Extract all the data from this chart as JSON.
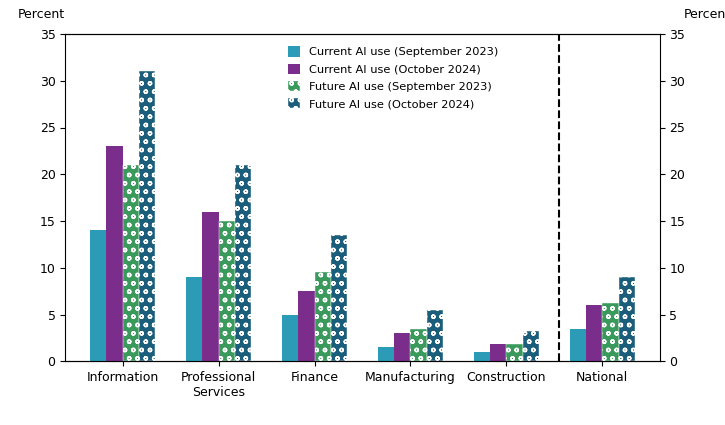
{
  "categories": [
    "Information",
    "Professional\nServices",
    "Finance",
    "Manufacturing",
    "Construction",
    "National"
  ],
  "series": {
    "current_sep2023": [
      14,
      9,
      5,
      1.5,
      1,
      3.5
    ],
    "current_oct2024": [
      23,
      16,
      7.5,
      3,
      1.8,
      6
    ],
    "future_sep2023": [
      21,
      15,
      9.5,
      3.5,
      1.8,
      6.2
    ],
    "future_oct2024": [
      31,
      21,
      13.5,
      5.5,
      3.2,
      9
    ]
  },
  "colors": {
    "current_sep2023": "#2B9BB8",
    "current_oct2024": "#7B2D8B",
    "future_sep2023": "#3A9A5C",
    "future_oct2024": "#1B5E7B"
  },
  "legend_labels": [
    "Current AI use (September 2023)",
    "Current AI use (October 2024)",
    "Future AI use (September 2023)",
    "Future AI use (October 2024)"
  ],
  "ylabel_left": "Percent",
  "ylabel_right": "Percent",
  "ylim": [
    0,
    35
  ],
  "yticks": [
    0,
    5,
    10,
    15,
    20,
    25,
    30,
    35
  ],
  "bar_width": 0.17,
  "figsize": [
    7.25,
    4.25
  ],
  "dpi": 100
}
